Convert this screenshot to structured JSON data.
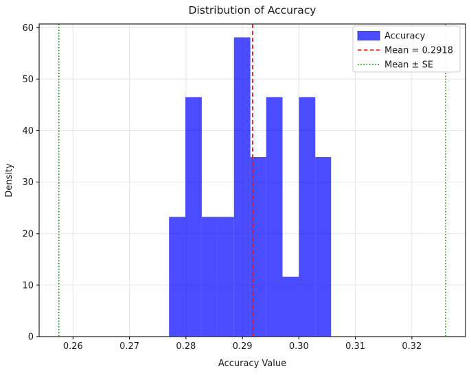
{
  "chart_data": {
    "type": "bar",
    "subtype": "histogram",
    "title": "Distribution of Accuracy",
    "xlabel": "Accuracy Value",
    "ylabel": "Density",
    "xlim": [
      0.254,
      0.3295
    ],
    "ylim": [
      0,
      60.7
    ],
    "x_ticks": [
      0.26,
      0.27,
      0.28,
      0.29,
      0.3,
      0.31,
      0.32
    ],
    "x_tick_labels": [
      "0.26",
      "0.27",
      "0.28",
      "0.29",
      "0.30",
      "0.31",
      "0.32"
    ],
    "y_ticks": [
      0,
      10,
      20,
      30,
      40,
      50,
      60
    ],
    "y_tick_labels": [
      "0",
      "10",
      "20",
      "30",
      "40",
      "50",
      "60"
    ],
    "grid": true,
    "bin_edges": [
      0.277,
      0.2799,
      0.2828,
      0.2856,
      0.2885,
      0.2914,
      0.2942,
      0.2971,
      0.3,
      0.3029,
      0.3057
    ],
    "densities": [
      23.24,
      46.49,
      23.24,
      23.24,
      58.11,
      34.87,
      46.49,
      11.62,
      46.49,
      34.87
    ],
    "counts": [
      2,
      4,
      2,
      2,
      5,
      3,
      4,
      1,
      4,
      3
    ],
    "mean": 0.2918,
    "se_lines": [
      0.2575,
      0.326
    ],
    "legend": {
      "position": "upper right",
      "entries": [
        {
          "swatch": "patch",
          "color": "#0000ff",
          "opacity": 0.7,
          "label": "Accuracy"
        },
        {
          "swatch": "dashed",
          "color": "#ee1111",
          "opacity": 0.9,
          "label": "Mean = 0.2918"
        },
        {
          "swatch": "dotted",
          "color": "#008000",
          "opacity": 1.0,
          "label": "Mean ± SE"
        }
      ]
    },
    "colors": {
      "bar": "#0000ff",
      "bar_opacity": 0.7,
      "mean_line": "#ee1111",
      "se_line": "#008000",
      "grid": "#dcdcdc",
      "frame": "#1f1f1f",
      "legend_border": "#cccccc",
      "background": "#ffffff"
    }
  }
}
